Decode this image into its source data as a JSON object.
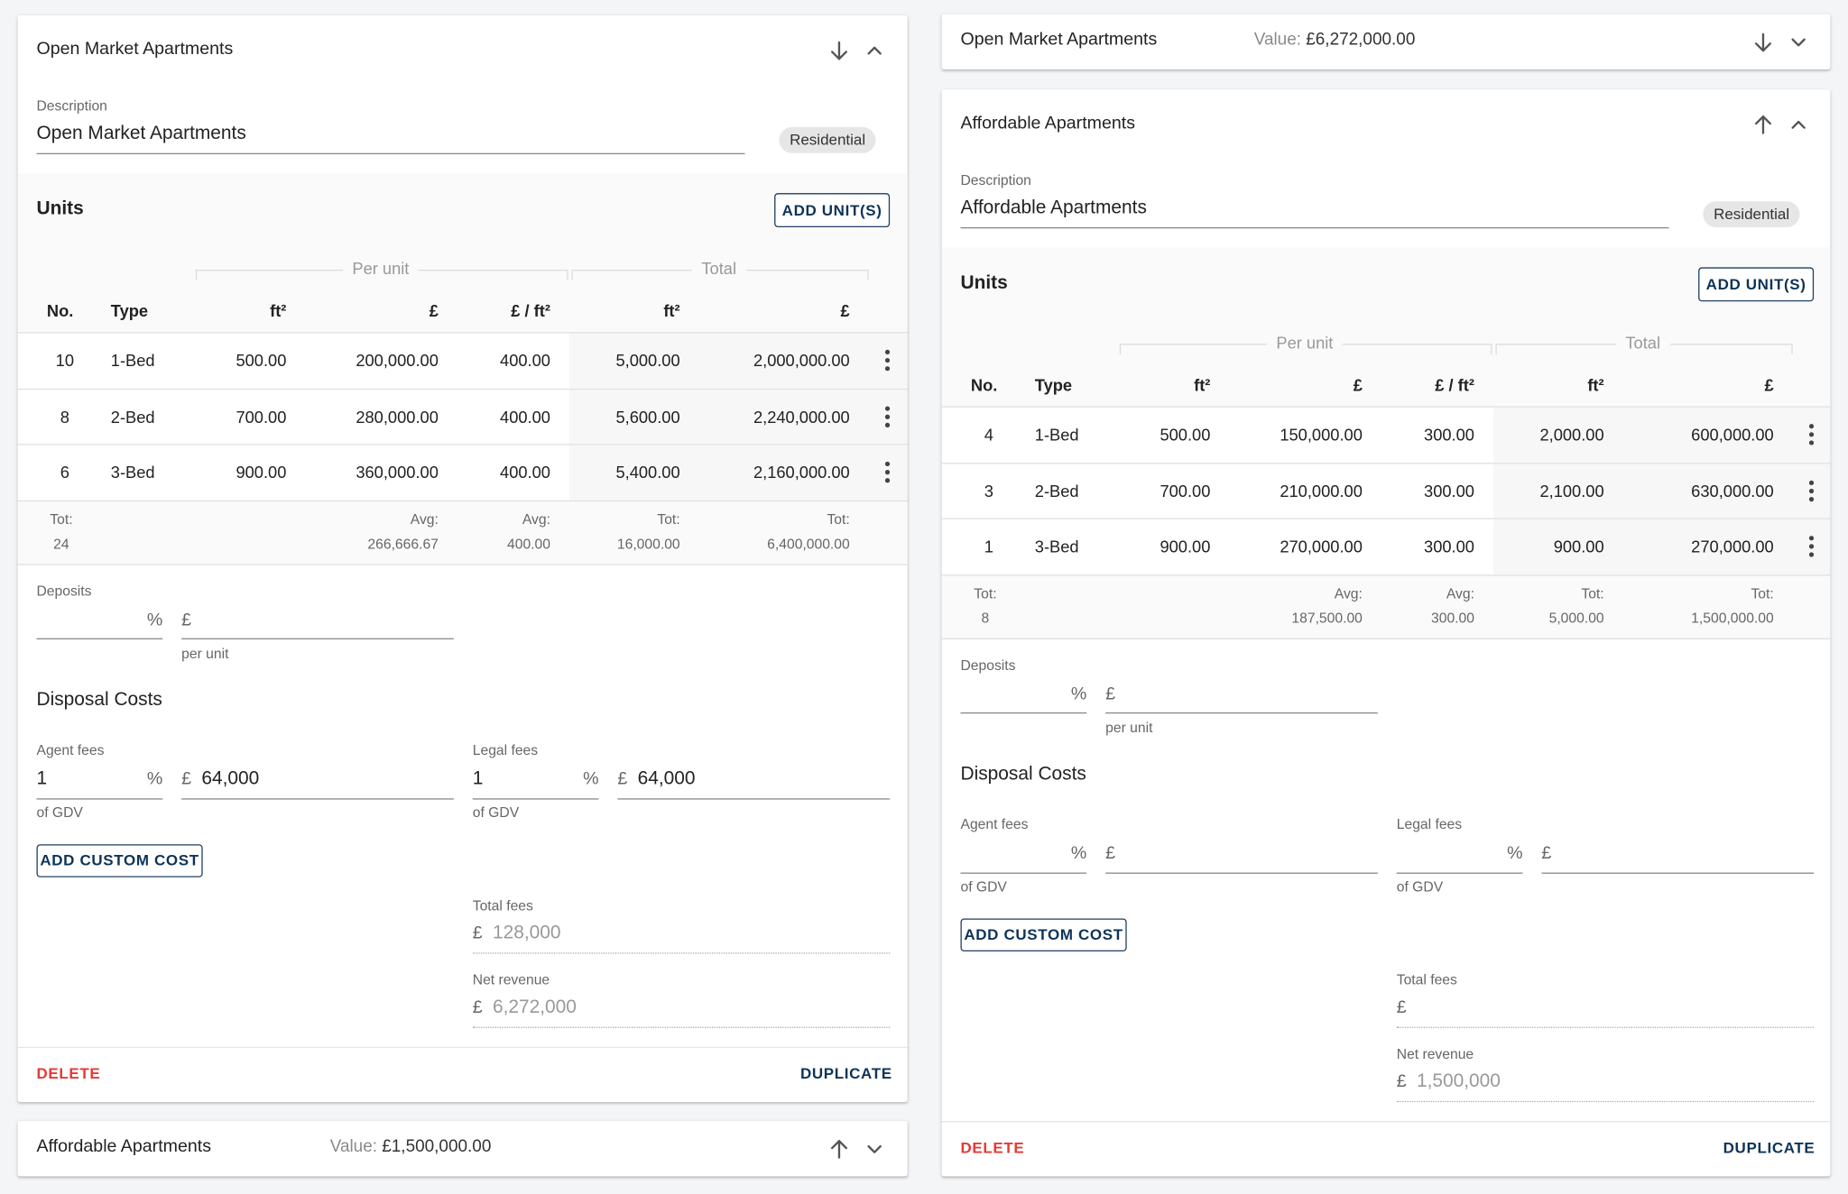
{
  "left": [
    {
      "title": "Open Market Apartments",
      "description_label": "Description",
      "description": "Open Market Apartments",
      "tag": "Residential",
      "units_title": "Units",
      "add_units": "ADD UNIT(S)",
      "group_headers": [
        "Per unit",
        "Total"
      ],
      "columns": [
        "No.",
        "Type",
        "ft²",
        "£",
        "£ / ft²",
        "ft²",
        "£"
      ],
      "rows": [
        [
          "10",
          "1-Bed",
          "500.00",
          "200,000.00",
          "400.00",
          "5,000.00",
          "2,000,000.00"
        ],
        [
          "8",
          "2-Bed",
          "700.00",
          "280,000.00",
          "400.00",
          "5,600.00",
          "2,240,000.00"
        ],
        [
          "6",
          "3-Bed",
          "900.00",
          "360,000.00",
          "400.00",
          "5,400.00",
          "2,160,000.00"
        ]
      ],
      "totals": [
        {
          "label": "Tot:",
          "value": "24"
        },
        null,
        null,
        {
          "label": "Avg:",
          "value": "266,666.67"
        },
        {
          "label": "Avg:",
          "value": "400.00"
        },
        {
          "label": "Tot:",
          "value": "16,000.00"
        },
        {
          "label": "Tot:",
          "value": "6,400,000.00"
        }
      ],
      "deposits_label": "Deposits",
      "percent": "%",
      "currency": "£",
      "per_unit": "per unit",
      "disposal_title": "Disposal Costs",
      "agent_label": "Agent fees",
      "agent_percent": "1",
      "agent_amount": "64,000",
      "legal_label": "Legal fees",
      "legal_percent": "1",
      "legal_amount": "64,000",
      "of_gdv": "of GDV",
      "add_custom_cost": "ADD CUSTOM COST",
      "total_fees_label": "Total fees",
      "total_fees": "128,000",
      "net_revenue_label": "Net revenue",
      "net_revenue": "6,272,000",
      "delete": "DELETE",
      "duplicate": "DUPLICATE"
    },
    {
      "title": "Affordable Apartments",
      "value_label": "Value:",
      "value": "£1,500,000.00"
    }
  ],
  "right": [
    {
      "title": "Open Market Apartments",
      "value_label": "Value:",
      "value": "£6,272,000.00"
    },
    {
      "title": "Affordable Apartments",
      "description_label": "Description",
      "description": "Affordable Apartments",
      "tag": "Residential",
      "units_title": "Units",
      "add_units": "ADD UNIT(S)",
      "group_headers": [
        "Per unit",
        "Total"
      ],
      "columns": [
        "No.",
        "Type",
        "ft²",
        "£",
        "£ / ft²",
        "ft²",
        "£"
      ],
      "rows": [
        [
          "4",
          "1-Bed",
          "500.00",
          "150,000.00",
          "300.00",
          "2,000.00",
          "600,000.00"
        ],
        [
          "3",
          "2-Bed",
          "700.00",
          "210,000.00",
          "300.00",
          "2,100.00",
          "630,000.00"
        ],
        [
          "1",
          "3-Bed",
          "900.00",
          "270,000.00",
          "300.00",
          "900.00",
          "270,000.00"
        ]
      ],
      "totals": [
        {
          "label": "Tot:",
          "value": "8"
        },
        null,
        null,
        {
          "label": "Avg:",
          "value": "187,500.00"
        },
        {
          "label": "Avg:",
          "value": "300.00"
        },
        {
          "label": "Tot:",
          "value": "5,000.00"
        },
        {
          "label": "Tot:",
          "value": "1,500,000.00"
        }
      ],
      "deposits_label": "Deposits",
      "percent": "%",
      "currency": "£",
      "per_unit": "per unit",
      "disposal_title": "Disposal Costs",
      "agent_label": "Agent fees",
      "legal_label": "Legal fees",
      "of_gdv": "of GDV",
      "add_custom_cost": "ADD CUSTOM COST",
      "total_fees_label": "Total fees",
      "net_revenue_label": "Net revenue",
      "net_revenue": "1,500,000",
      "delete": "DELETE",
      "duplicate": "DUPLICATE"
    }
  ]
}
